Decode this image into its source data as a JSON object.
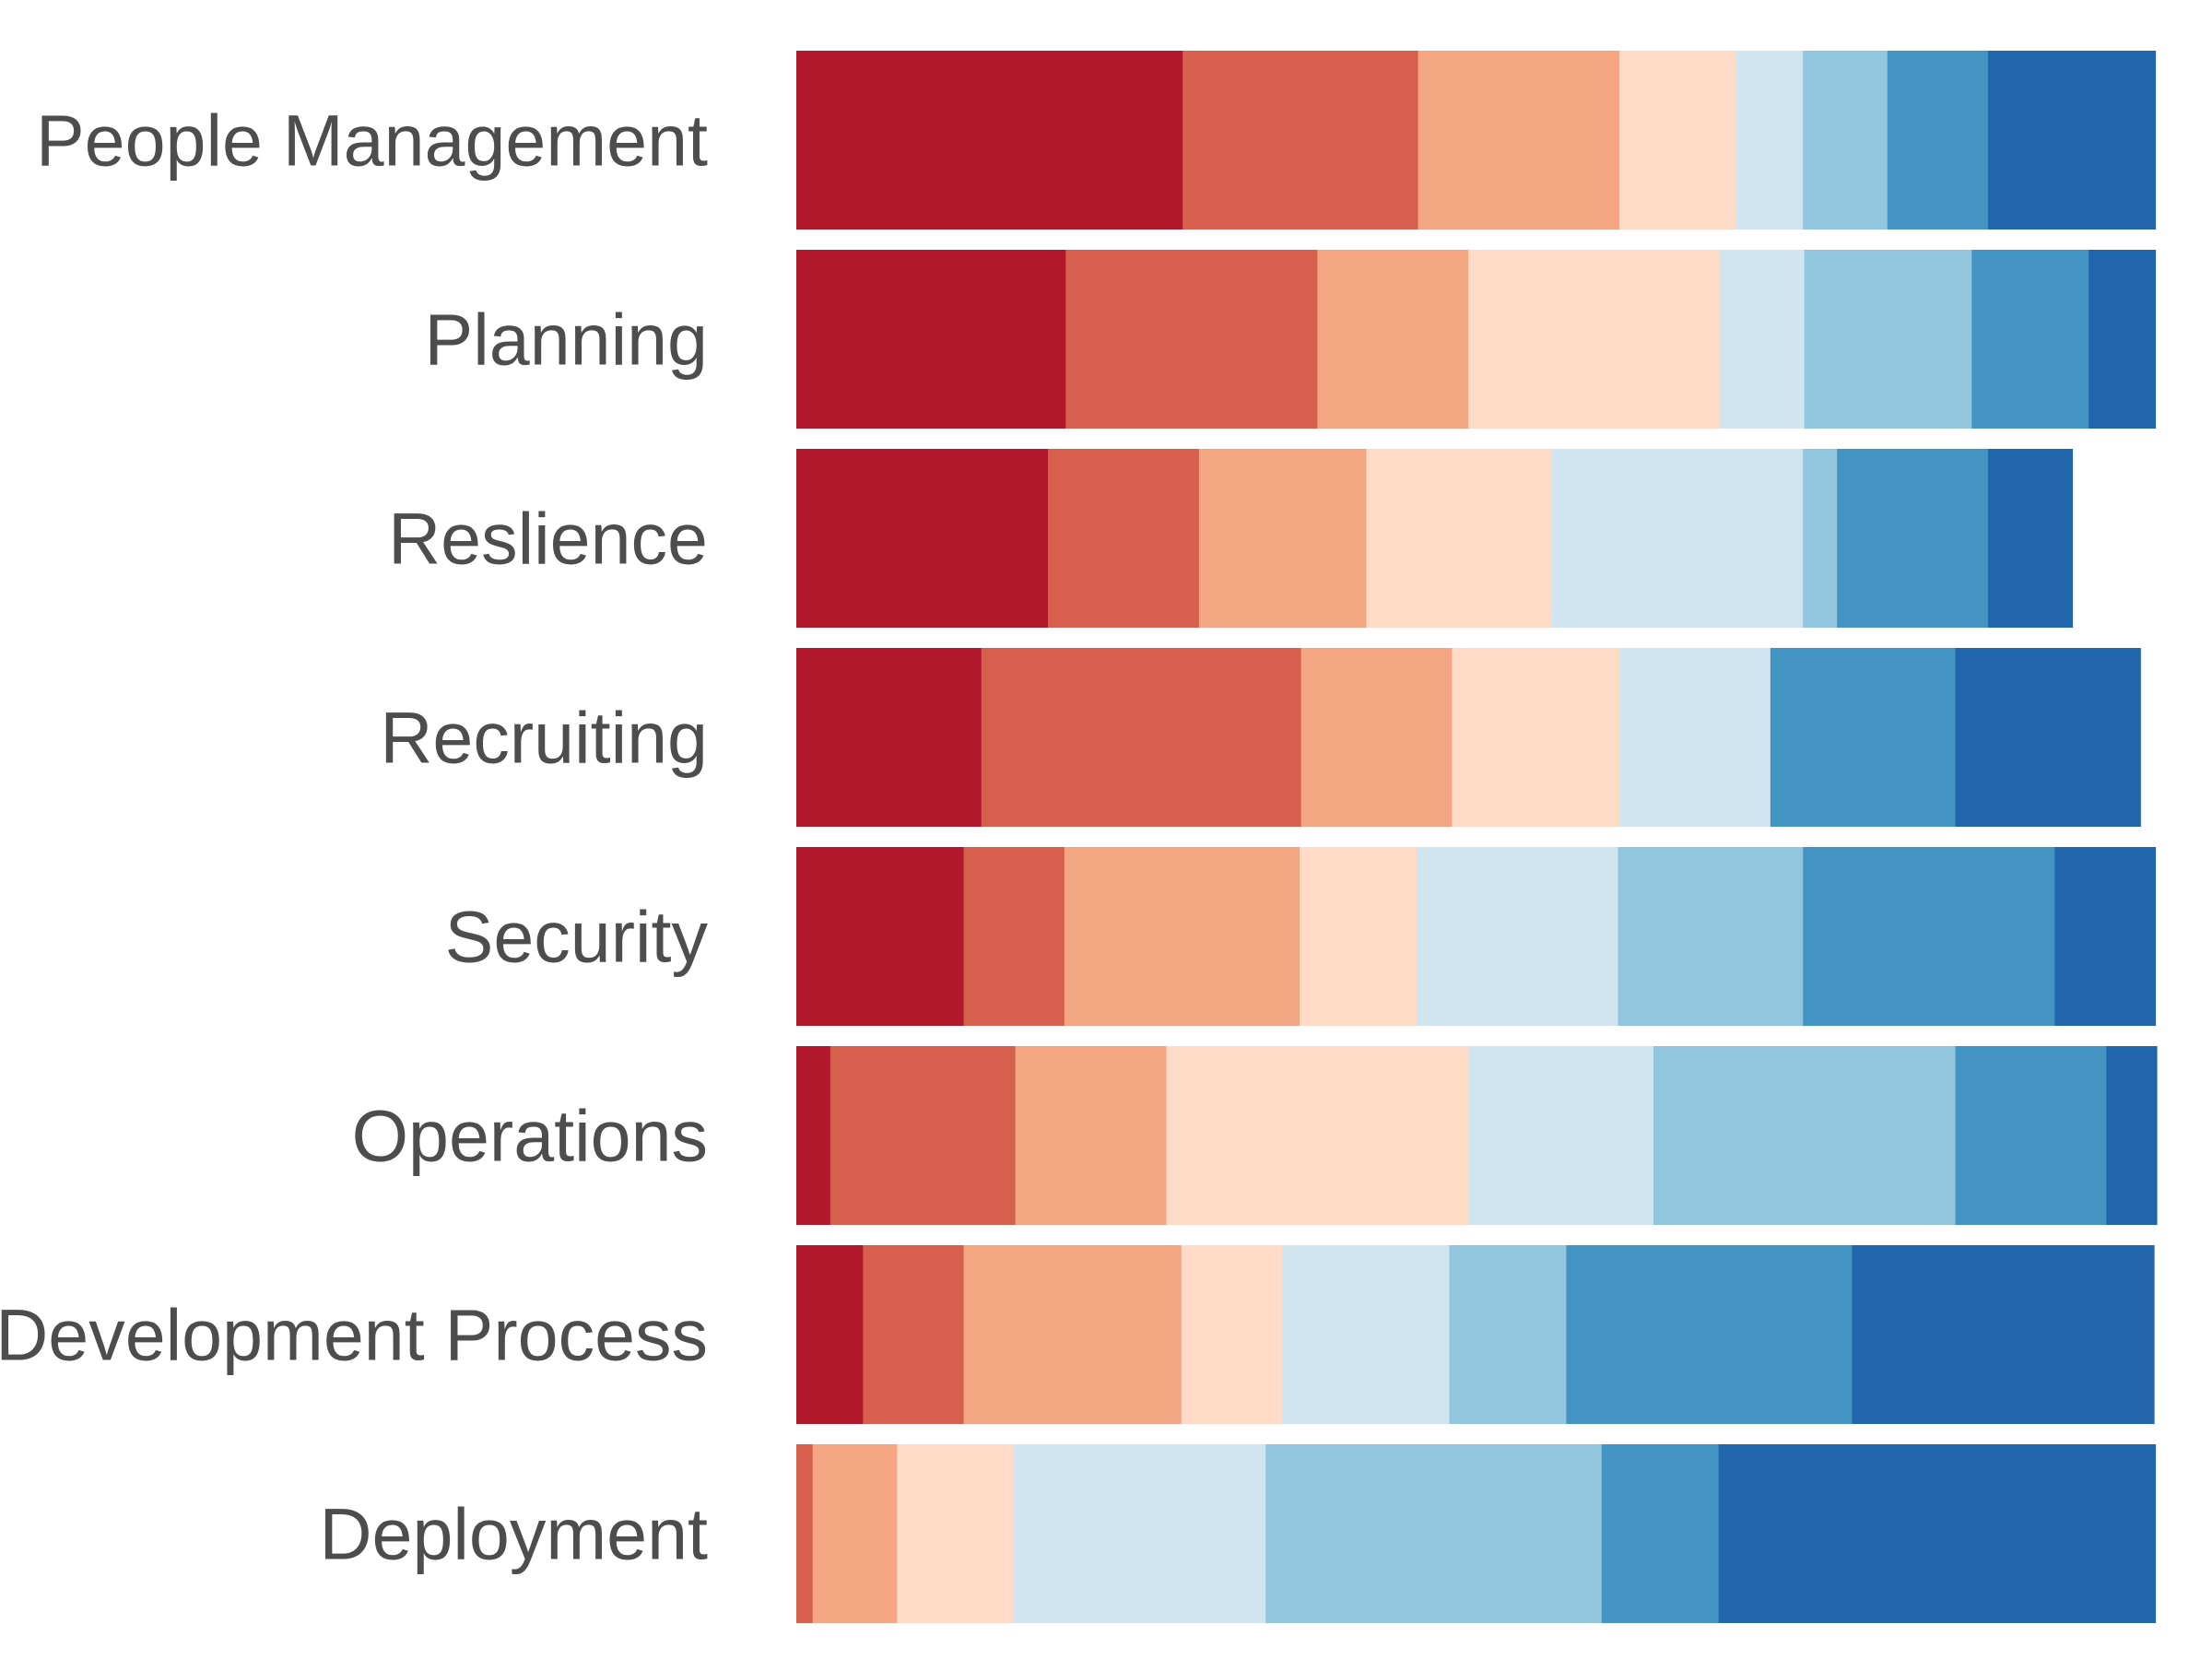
{
  "chart_data": {
    "type": "bar",
    "orientation": "horizontal",
    "stacked": true,
    "normalized": true,
    "title": "",
    "xlabel": "",
    "ylabel": "",
    "legend": "none",
    "grid": false,
    "xlim": [
      0,
      1
    ],
    "categories": [
      "People Management",
      "Planning",
      "Reslience",
      "Recruiting",
      "Security",
      "Operations",
      "Development Process",
      "Deployment"
    ],
    "segment_colors": [
      "#b2182b",
      "#d6604d",
      "#f4a582",
      "#fddbc7",
      "#d1e5f0",
      "#92c5de",
      "#4393c3",
      "#2166ac"
    ],
    "series": [
      {
        "values": [
          0.284,
          0.198,
          0.185,
          0.136,
          0.123,
          0.025,
          0.049,
          0.0
        ]
      },
      {
        "values": [
          0.173,
          0.185,
          0.111,
          0.235,
          0.074,
          0.136,
          0.074,
          0.012
        ]
      },
      {
        "values": [
          0.148,
          0.111,
          0.123,
          0.111,
          0.173,
          0.111,
          0.16,
          0.062
        ]
      },
      {
        "values": [
          0.086,
          0.185,
          0.136,
          0.123,
          0.086,
          0.222,
          0.074,
          0.086
        ]
      },
      {
        "values": [
          0.049,
          0.062,
          0.185,
          0.111,
          0.148,
          0.136,
          0.123,
          0.185
        ]
      },
      {
        "values": [
          0.062,
          0.123,
          0.025,
          0.0,
          0.136,
          0.222,
          0.086,
          0.247
        ]
      },
      {
        "values": [
          0.074,
          0.086,
          0.111,
          0.136,
          0.185,
          0.111,
          0.21,
          0.086
        ]
      },
      {
        "values": [
          0.123,
          0.049,
          0.062,
          0.136,
          0.074,
          0.037,
          0.222,
          0.321
        ]
      }
    ]
  }
}
